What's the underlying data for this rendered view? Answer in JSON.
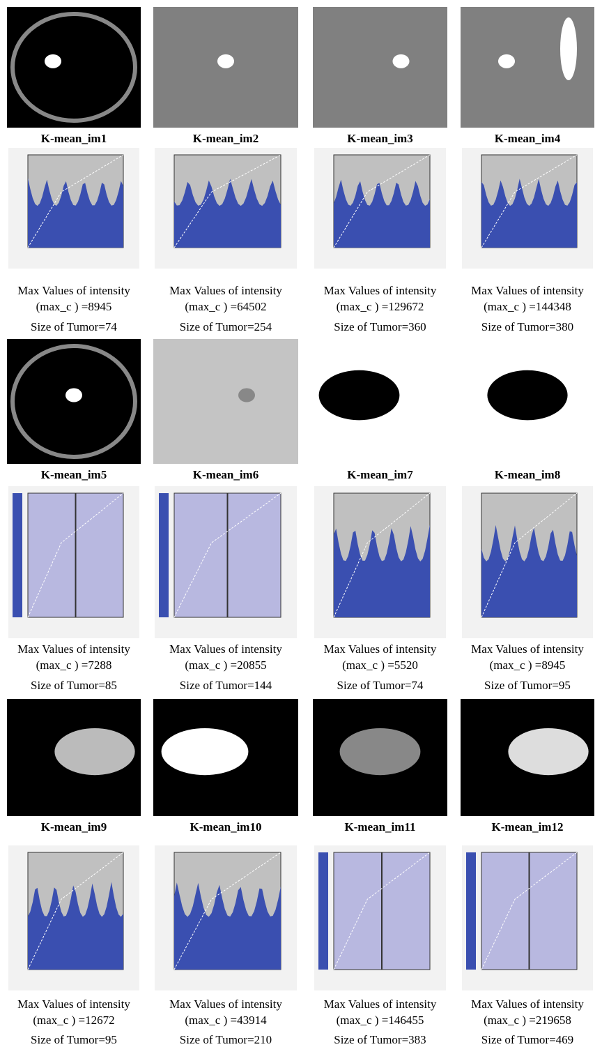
{
  "panels": [
    {
      "title": "K-mean_im1",
      "intensity_label": "Max Values of intensity",
      "max_c": "(max_c ) =8945",
      "size": "Size of Tumor=74"
    },
    {
      "title": "K-mean_im2",
      "intensity_label": "Max Values of intensity",
      "max_c": "(max_c ) =64502",
      "size": "Size of Tumor=254"
    },
    {
      "title": "K-mean_im3",
      "intensity_label": "Max Values of intensity",
      "max_c": "(max_c ) =129672",
      "size": "Size of Tumor=360"
    },
    {
      "title": "K-mean_im4",
      "intensity_label": "Max Values of intensity",
      "max_c": "(max_c ) =144348",
      "size": "Size of Tumor=380"
    },
    {
      "title": "K-mean_im5",
      "intensity_label": "Max Values of intensity",
      "max_c": "(max_c ) =7288",
      "size": "Size of Tumor=85"
    },
    {
      "title": "K-mean_im6",
      "intensity_label": "Max Values of intensity",
      "max_c": "(max_c ) =20855",
      "size": "Size of Tumor=144"
    },
    {
      "title": "K-mean_im7",
      "intensity_label": "Max Values of intensity",
      "max_c": "(max_c ) =5520",
      "size": "Size of Tumor=74"
    },
    {
      "title": "K-mean_im8",
      "intensity_label": "Max Values of intensity",
      "max_c": "(max_c ) =8945",
      "size": "Size of Tumor=95"
    },
    {
      "title": "K-mean_im9",
      "intensity_label": "Max Values of intensity",
      "max_c": "(max_c ) =12672",
      "size": "Size of Tumor=95"
    },
    {
      "title": "K-mean_im10",
      "intensity_label": "Max Values of intensity",
      "max_c": "(max_c ) =43914",
      "size": "Size of Tumor=210"
    },
    {
      "title": "K-mean_im11",
      "intensity_label": "Max Values of intensity",
      "max_c": "(max_c ) =146455",
      "size": "Size of Tumor=383"
    },
    {
      "title": "K-mean_im12",
      "intensity_label": "Max Values of intensity",
      "max_c": "(max_c ) =219658",
      "size": "Size of Tumor=469"
    }
  ]
}
